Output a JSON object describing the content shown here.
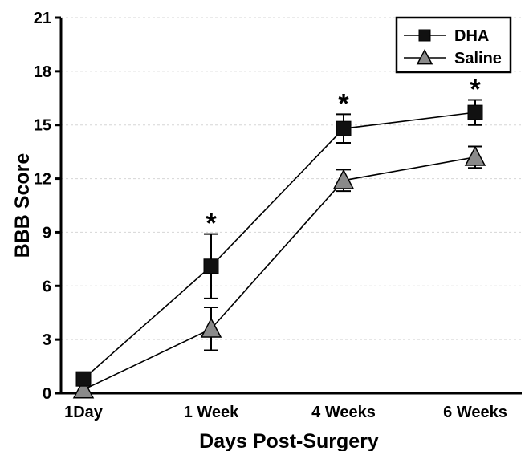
{
  "chart_data": {
    "type": "line",
    "categories": [
      "1Day",
      "1 Week",
      "4 Weeks",
      "6 Weeks"
    ],
    "xlabel": "Days Post-Surgery",
    "ylabel": "BBB Score",
    "ylim": [
      0,
      21
    ],
    "yticks": [
      0,
      3,
      6,
      9,
      12,
      15,
      18,
      21
    ],
    "grid": true,
    "legend_position": "top-right",
    "series": [
      {
        "name": "DHA",
        "marker": "square",
        "color": "#111111",
        "values": [
          0.8,
          7.1,
          14.8,
          15.7
        ],
        "error": [
          0,
          1.8,
          0.8,
          0.7
        ],
        "significance": [
          "",
          "*",
          "*",
          "*"
        ]
      },
      {
        "name": "Saline",
        "marker": "triangle",
        "color": "#8a8a8a",
        "values": [
          0.2,
          3.6,
          11.9,
          13.2
        ],
        "error": [
          0,
          1.2,
          0.6,
          0.6
        ],
        "significance": [
          "",
          "",
          "",
          ""
        ]
      }
    ]
  }
}
